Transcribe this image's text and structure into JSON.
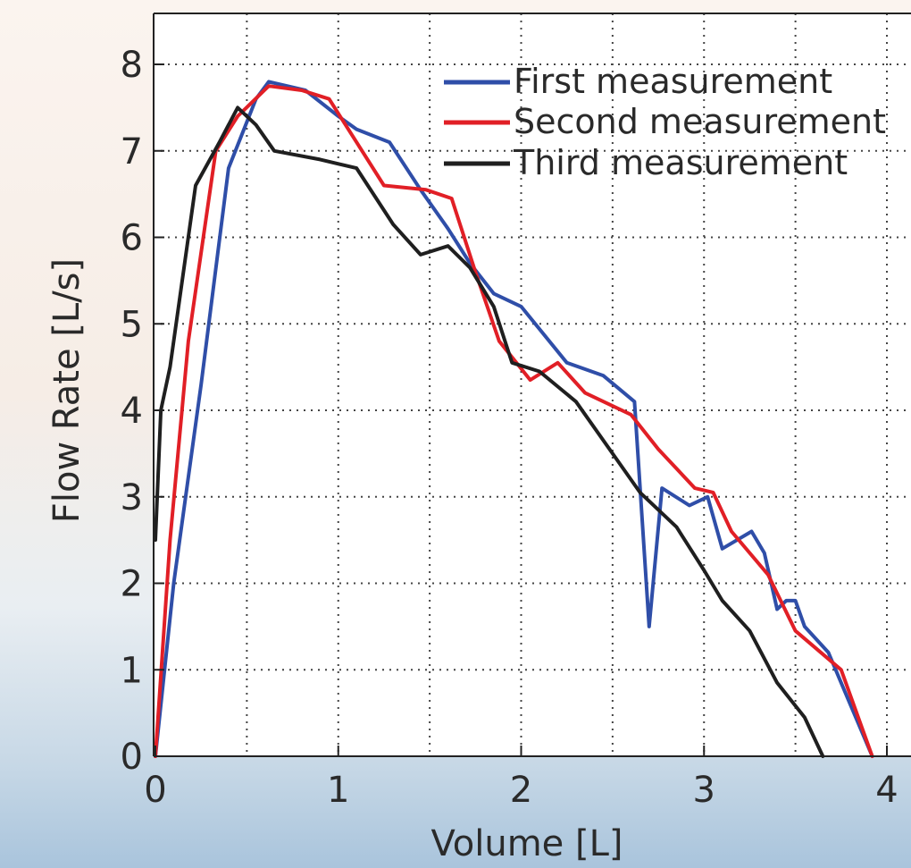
{
  "chart_data": {
    "type": "line",
    "title": "",
    "xlabel": "Volume [L]",
    "ylabel": "Flow Rate [L/s]",
    "xlim": [
      0,
      4.2
    ],
    "ylim": [
      0,
      8.5
    ],
    "x_ticks": [
      0,
      1,
      2,
      3,
      4
    ],
    "y_ticks": [
      0,
      1,
      2,
      3,
      4,
      5,
      6,
      7,
      8
    ],
    "x_tick_labels": [
      "0",
      "1",
      "2",
      "3",
      "4"
    ],
    "y_tick_labels": [
      "0",
      "1",
      "2",
      "3",
      "4",
      "5",
      "6",
      "7",
      "8"
    ],
    "grid": true,
    "grid_style": "dotted",
    "legend_position": "top-right",
    "series": [
      {
        "name": "First measurement",
        "color": "#2f4ea8",
        "x": [
          0.0,
          0.1,
          0.25,
          0.4,
          0.55,
          0.62,
          0.82,
          1.0,
          1.1,
          1.28,
          1.45,
          1.6,
          1.72,
          1.85,
          2.0,
          2.25,
          2.45,
          2.62,
          2.7,
          2.77,
          2.92,
          3.02,
          3.1,
          3.26,
          3.33,
          3.4,
          3.45,
          3.5,
          3.55,
          3.68,
          3.8,
          3.92
        ],
        "y": [
          0.0,
          2.0,
          4.3,
          6.8,
          7.6,
          7.8,
          7.7,
          7.4,
          7.25,
          7.1,
          6.55,
          6.1,
          5.7,
          5.35,
          5.2,
          4.55,
          4.4,
          4.1,
          1.5,
          3.1,
          2.9,
          3.0,
          2.4,
          2.6,
          2.35,
          1.7,
          1.8,
          1.8,
          1.5,
          1.2,
          0.6,
          0.0
        ]
      },
      {
        "name": "Second measurement",
        "color": "#e11f26",
        "x": [
          0.0,
          0.08,
          0.18,
          0.33,
          0.45,
          0.62,
          0.8,
          0.95,
          1.1,
          1.25,
          1.48,
          1.62,
          1.75,
          1.88,
          2.05,
          2.2,
          2.35,
          2.6,
          2.75,
          2.95,
          3.05,
          3.15,
          3.35,
          3.5,
          3.75,
          3.92
        ],
        "y": [
          0.0,
          2.5,
          4.8,
          7.0,
          7.4,
          7.75,
          7.7,
          7.6,
          7.1,
          6.6,
          6.55,
          6.45,
          5.6,
          4.8,
          4.35,
          4.55,
          4.2,
          3.95,
          3.55,
          3.1,
          3.05,
          2.6,
          2.1,
          1.45,
          1.0,
          0.0
        ]
      },
      {
        "name": "Third measurement",
        "color": "#1f1f1f",
        "x": [
          0.0,
          0.03,
          0.08,
          0.22,
          0.35,
          0.45,
          0.55,
          0.65,
          0.9,
          1.1,
          1.3,
          1.45,
          1.6,
          1.72,
          1.85,
          1.95,
          2.1,
          2.3,
          2.5,
          2.65,
          2.85,
          3.0,
          3.1,
          3.25,
          3.4,
          3.55,
          3.65
        ],
        "y": [
          2.5,
          4.0,
          4.5,
          6.6,
          7.1,
          7.5,
          7.3,
          7.0,
          6.9,
          6.8,
          6.15,
          5.8,
          5.9,
          5.65,
          5.2,
          4.55,
          4.45,
          4.1,
          3.5,
          3.05,
          2.65,
          2.15,
          1.8,
          1.45,
          0.85,
          0.45,
          0.0
        ]
      }
    ]
  }
}
